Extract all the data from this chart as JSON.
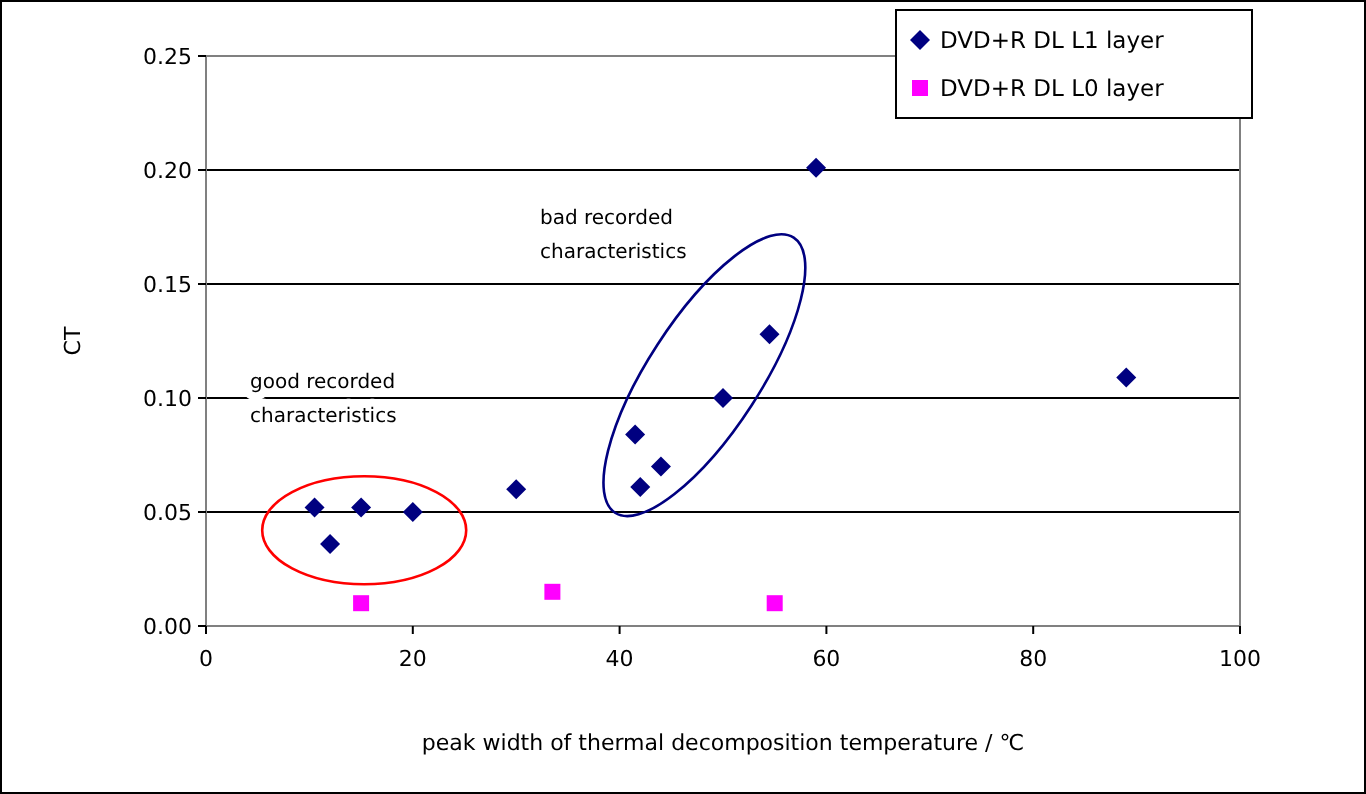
{
  "chart_data": {
    "type": "scatter",
    "xlabel": "peak width of thermal decomposition temperature / ℃",
    "ylabel": "CT",
    "xlim": [
      0,
      100
    ],
    "xticks": [
      0,
      20,
      40,
      60,
      80,
      100
    ],
    "ylim": [
      0,
      0.25
    ],
    "yticks": [
      {
        "value": 0,
        "label": "0.00"
      },
      {
        "value": 0.05,
        "label": "0.05"
      },
      {
        "value": 0.1,
        "label": "0.10"
      },
      {
        "value": 0.15,
        "label": "0.15"
      },
      {
        "value": 0.2,
        "label": "0.20"
      },
      {
        "value": 0.25,
        "label": "0.25"
      }
    ],
    "grid": "y",
    "legend": "top right",
    "series": [
      {
        "name": "DVD+R DL L1 layer",
        "color": "#000080",
        "marker": "diamond",
        "x": [
          10.5,
          12,
          15,
          20,
          30,
          41.5,
          42,
          44,
          50,
          54.5,
          59,
          89
        ],
        "values": [
          0.052,
          0.036,
          0.052,
          0.05,
          0.06,
          0.084,
          0.061,
          0.07,
          0.1,
          0.128,
          0.201,
          0.109
        ]
      },
      {
        "name": "DVD+R DL L0 layer",
        "color": "#ff00ff",
        "marker": "square",
        "x": [
          15,
          33.5,
          55
        ],
        "values": [
          0.01,
          0.015,
          0.01
        ]
      }
    ],
    "annotations": [
      "good recorded\ncharacteristics",
      "bad recorded\ncharacteristics"
    ]
  }
}
